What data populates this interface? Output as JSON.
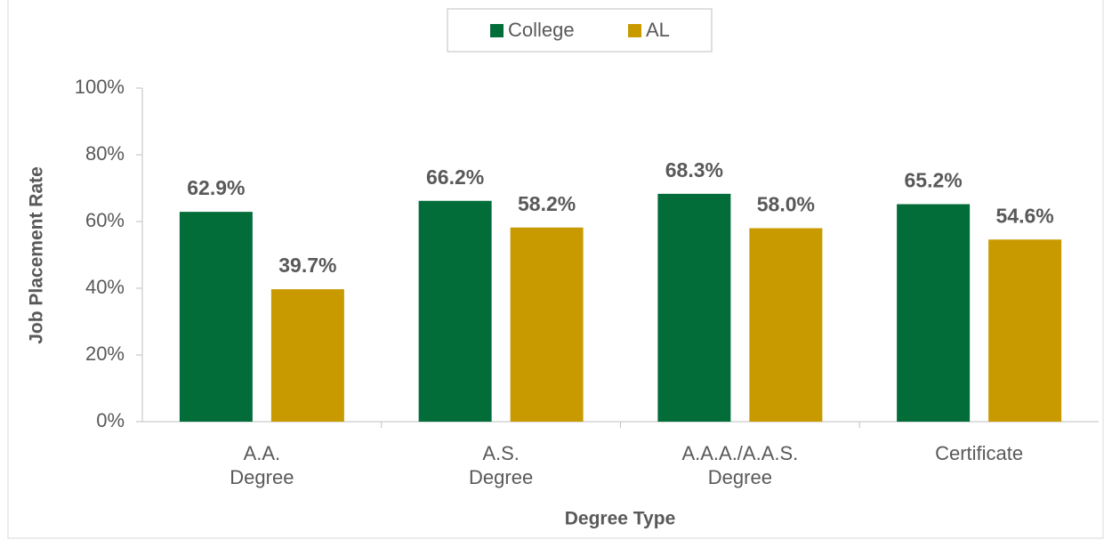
{
  "chart_data": {
    "type": "bar",
    "categories": [
      "A.A.\nDegree",
      "A.S.\nDegree",
      "A.A.A./A.A.S.\nDegree",
      "Certificate"
    ],
    "series": [
      {
        "name": "College",
        "color": "#036d3a",
        "values": [
          62.9,
          66.2,
          68.3,
          65.2
        ],
        "value_labels": [
          "62.9%",
          "66.2%",
          "68.3%",
          "65.2%"
        ]
      },
      {
        "name": "AL",
        "color": "#c99a00",
        "values": [
          39.7,
          58.2,
          58.0,
          54.6
        ],
        "value_labels": [
          "39.7%",
          "58.2%",
          "58.0%",
          "54.6%"
        ]
      }
    ],
    "xlabel": "Degree Type",
    "ylabel": "Job Placement Rate",
    "ylim": [
      0,
      100
    ],
    "yticks": [
      {
        "value": 0,
        "label": "0%"
      },
      {
        "value": 20,
        "label": "20%"
      },
      {
        "value": 40,
        "label": "40%"
      },
      {
        "value": 60,
        "label": "60%"
      },
      {
        "value": 80,
        "label": "80%"
      },
      {
        "value": 100,
        "label": "100%"
      }
    ],
    "grid": false,
    "legend": "top"
  }
}
